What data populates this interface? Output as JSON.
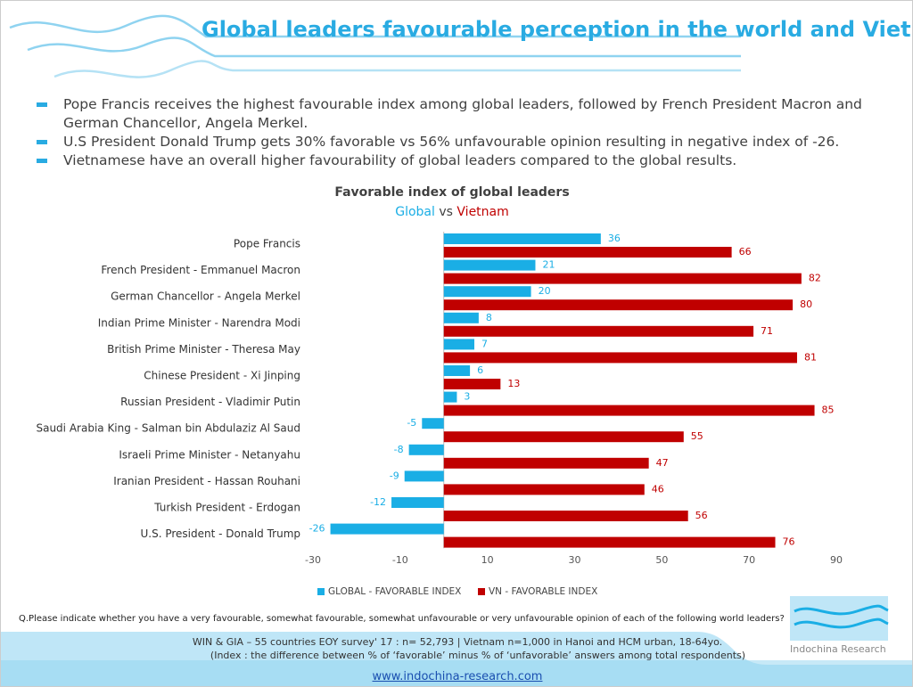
{
  "header": {
    "title": "Global leaders favourable perception in the world and Vietnam"
  },
  "bullets": [
    "Pope Francis receives the highest favourable index among global leaders, followed by French President Macron and German Chancellor, Angela Merkel.",
    "U.S President Donald Trump gets 30% favorable vs 56% unfavourable opinion resulting in negative index of -26.",
    "Vietnamese have an overall higher favourability of global leaders compared to the global results."
  ],
  "chart_data": {
    "type": "hbar",
    "title": "Favorable index of global leaders",
    "subtitle": {
      "global": "Global",
      "vs": "vs",
      "vietnam": "Vietnam"
    },
    "categories": [
      "Pope Francis",
      "French President - Emmanuel Macron",
      "German Chancellor - Angela Merkel",
      "Indian Prime Minister - Narendra Modi",
      "British Prime Minister - Theresa May",
      "Chinese President - Xi Jinping",
      "Russian President - Vladimir Putin",
      "Saudi Arabia King - Salman bin Abdulaziz Al Saud",
      "Israeli Prime Minister - Netanyahu",
      "Iranian President - Hassan Rouhani",
      "Turkish President - Erdogan",
      "U.S. President - Donald Trump"
    ],
    "series": [
      {
        "name": "GLOBAL - FAVORABLE INDEX",
        "color": "#1aaee5",
        "values": [
          36,
          21,
          20,
          8,
          7,
          6,
          3,
          -5,
          -8,
          -9,
          -12,
          -26
        ]
      },
      {
        "name": "VN - FAVORABLE INDEX",
        "color": "#c00000",
        "values": [
          66,
          82,
          80,
          71,
          81,
          13,
          85,
          55,
          47,
          46,
          56,
          76
        ]
      }
    ],
    "xlim": [
      -30,
      90
    ],
    "xticks": [
      -30,
      -10,
      10,
      30,
      50,
      70,
      90
    ],
    "legend": "bottom"
  },
  "question": "Q.Please indicate whether you have a very favourable, somewhat favourable, somewhat unfavourable or very unfavourable opinion of each of the following world leaders?",
  "source": [
    "WIN & GIA – 55 countries EOY survey' 17 : n= 52,793   | Vietnam n=1,000 in Hanoi and HCM urban, 18-64yo.",
    "(Index : the difference between % of ‘favorable’ minus % of ‘unfavorable’ answers among total respondents)"
  ],
  "logo": "Indochina Research",
  "url": "www.indochina-research.com"
}
